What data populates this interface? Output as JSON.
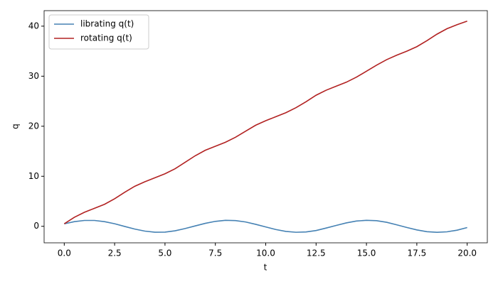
{
  "chart_data": {
    "type": "line",
    "xlabel": "t",
    "ylabel": "q",
    "x": [
      0,
      0.5,
      1,
      1.5,
      2,
      2.5,
      3,
      3.5,
      4,
      4.5,
      5,
      5.5,
      6,
      6.5,
      7,
      7.5,
      8,
      8.5,
      9,
      9.5,
      10,
      10.5,
      11,
      11.5,
      12,
      12.5,
      13,
      13.5,
      14,
      14.5,
      15,
      15.5,
      16,
      16.5,
      17,
      17.5,
      18,
      18.5,
      19,
      19.5,
      20
    ],
    "series": [
      {
        "name": "librating q(t)",
        "color": "#4682b4",
        "values": [
          0.5,
          0.93,
          1.17,
          1.17,
          0.93,
          0.51,
          -0.03,
          -0.55,
          -0.96,
          -1.18,
          -1.16,
          -0.9,
          -0.45,
          0.08,
          0.59,
          0.99,
          1.19,
          1.14,
          0.87,
          0.4,
          -0.13,
          -0.64,
          -1.02,
          -1.19,
          -1.13,
          -0.84,
          -0.35,
          0.18,
          0.68,
          1.05,
          1.2,
          1.12,
          0.81,
          0.3,
          -0.23,
          -0.72,
          -1.08,
          -1.2,
          -1.1,
          -0.77,
          -0.25
        ]
      },
      {
        "name": "rotating q(t)",
        "color": "#b22222",
        "values": [
          0.5,
          1.8,
          2.8,
          3.6,
          4.4,
          5.5,
          6.8,
          8.0,
          8.9,
          9.7,
          10.5,
          11.5,
          12.8,
          14.1,
          15.2,
          16.0,
          16.8,
          17.8,
          19.0,
          20.2,
          21.1,
          21.9,
          22.7,
          23.7,
          24.9,
          26.2,
          27.2,
          28.0,
          28.8,
          29.8,
          31.0,
          32.2,
          33.3,
          34.2,
          35.0,
          35.9,
          37.1,
          38.4,
          39.5,
          40.3,
          41.0
        ]
      }
    ],
    "xlim": [
      -1.0,
      21.0
    ],
    "xticks": [
      {
        "value": 0,
        "label": "0.0"
      },
      {
        "value": 2.5,
        "label": "2.5"
      },
      {
        "value": 5,
        "label": "5.0"
      },
      {
        "value": 7.5,
        "label": "7.5"
      },
      {
        "value": 10,
        "label": "10.0"
      },
      {
        "value": 12.5,
        "label": "12.5"
      },
      {
        "value": 15,
        "label": "15.0"
      },
      {
        "value": 17.5,
        "label": "17.5"
      },
      {
        "value": 20,
        "label": "20.0"
      }
    ],
    "ylim": [
      -3.3,
      43.1
    ],
    "yticks": [
      0,
      10,
      20,
      30,
      40
    ],
    "legend": "upper left"
  }
}
